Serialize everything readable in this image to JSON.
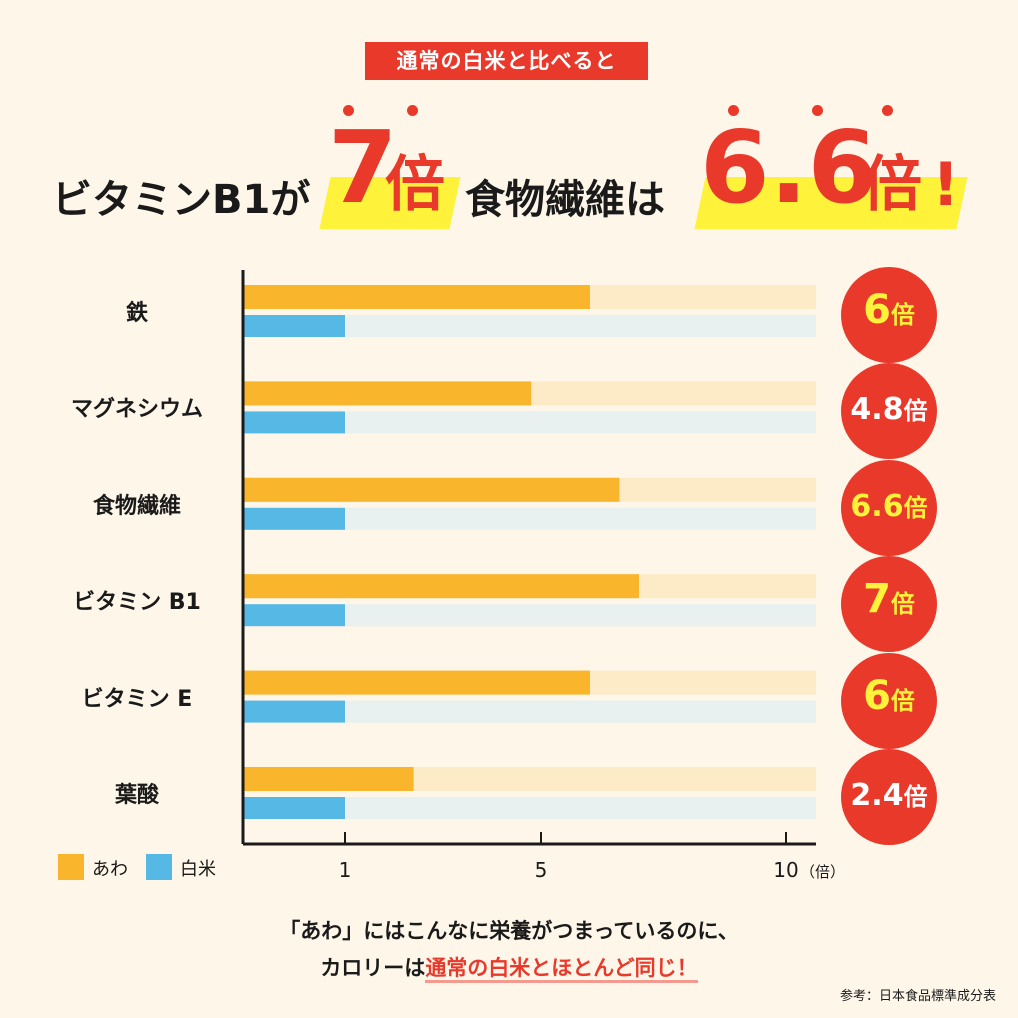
{
  "banner": "通常の白米と比べると",
  "headline": {
    "part1": "ビタミンB1が",
    "num1": "7",
    "unit1": "倍",
    "part2": "食物繊維は",
    "num2": "6.6",
    "unit2": "倍",
    "exclaim": "!"
  },
  "legend": {
    "awa": "あわ",
    "hakumai": "白米"
  },
  "x_unit": "（倍）",
  "footer": {
    "line1": "「あわ」にはこんなに栄養がつまっているのに、",
    "line2_prefix": "カロリーは",
    "line2_highlight": "通常の白米とほとんど同じ！"
  },
  "note": "参考：日本食品標準成分表",
  "colors": {
    "awa": "#f9b52c",
    "awa_track": "#fdebc8",
    "hakumai": "#56b8e5",
    "hakumai_track": "#e8f1f0",
    "accent": "#e8392b",
    "badge_text": "#fef23a"
  },
  "chart_data": {
    "type": "bar",
    "orientation": "horizontal",
    "categories": [
      "鉄",
      "マグネシウム",
      "食物繊維",
      "ビタミン B1",
      "ビタミン E",
      "葉酸"
    ],
    "series": [
      {
        "name": "あわ",
        "values": [
          6,
          4.8,
          6.6,
          7,
          6,
          2.4
        ]
      },
      {
        "name": "白米",
        "values": [
          1,
          1,
          1,
          1,
          1,
          1
        ]
      }
    ],
    "badges": [
      "6倍",
      "4.8倍",
      "6.6倍",
      "7倍",
      "6倍",
      "2.4倍"
    ],
    "xticks": [
      "1",
      "5",
      "10"
    ],
    "xtick_values": [
      1,
      5,
      10
    ],
    "xlim": [
      0,
      11
    ],
    "xlabel": "（倍）",
    "legend_position": "bottom-left",
    "grid": false
  }
}
